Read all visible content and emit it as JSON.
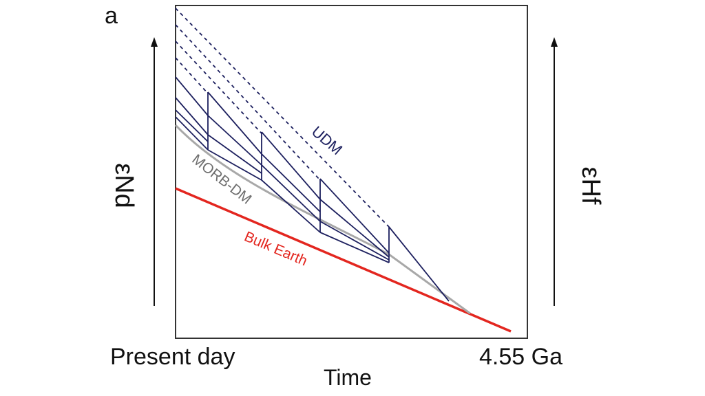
{
  "figure": {
    "panel_label": "a",
    "left_axis_label": "εNd",
    "right_axis_label": "εHf",
    "x_left_label": "Present day",
    "x_right_label": "4.55 Ga",
    "x_title": "Time"
  },
  "curves": {
    "udm_label": "UDM",
    "morb_label": "MORB-DM",
    "bulk_earth_label": "Bulk Earth"
  },
  "colors": {
    "udm": "#1c1f5e",
    "morb": "#a8a8a8",
    "bulk_earth": "#e3261f",
    "morb_text": "#6e6e6e",
    "frame": "#333333"
  }
}
